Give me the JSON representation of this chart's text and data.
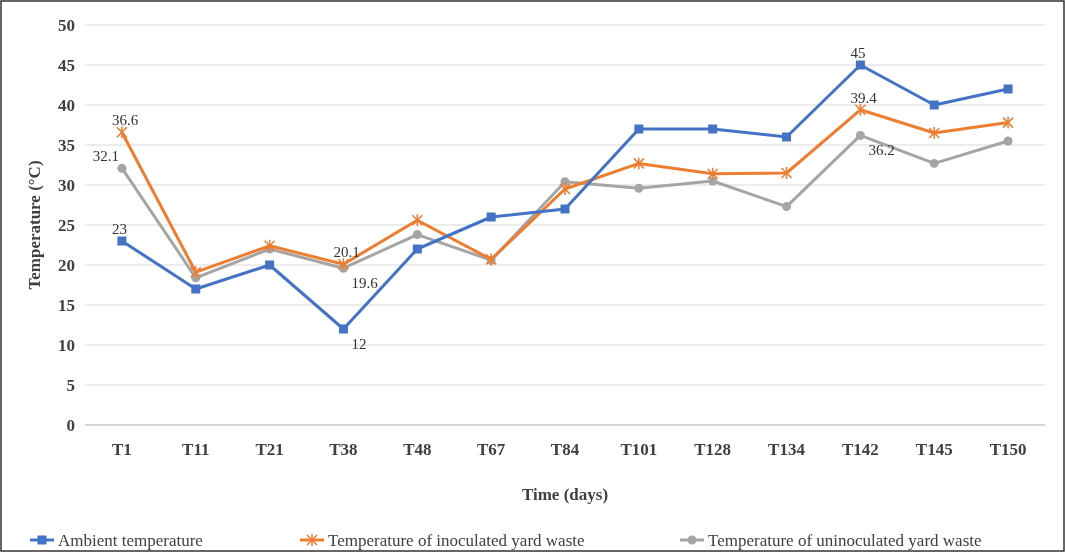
{
  "chart_data": {
    "type": "line",
    "xlabel": "Time (days)",
    "ylabel": "Temperature (°C)",
    "categories": [
      "T1",
      "T11",
      "T21",
      "T38",
      "T48",
      "T67",
      "T84",
      "T101",
      "T128",
      "T134",
      "T142",
      "T145",
      "T150"
    ],
    "ylim": [
      0,
      50
    ],
    "yticks": [
      0,
      5,
      10,
      15,
      20,
      25,
      30,
      35,
      40,
      45,
      50
    ],
    "grid": "y",
    "legend": "bottom",
    "series": [
      {
        "name": "Ambient temperature",
        "color": "#4472c4",
        "marker": "square",
        "values": [
          23,
          17,
          20,
          12,
          22,
          26,
          27,
          37,
          37,
          36,
          45,
          40,
          42
        ],
        "value_labels": [
          "23",
          null,
          null,
          "12",
          null,
          null,
          null,
          null,
          null,
          null,
          "45",
          null,
          null
        ]
      },
      {
        "name": "Temperature of inoculated yard waste",
        "color": "#ed7d31",
        "marker": "cross",
        "values": [
          36.6,
          19.1,
          22.4,
          20.1,
          25.6,
          20.7,
          29.5,
          32.7,
          31.4,
          31.5,
          39.4,
          36.5,
          37.8
        ],
        "value_labels": [
          "36.6",
          null,
          null,
          "20.1",
          null,
          null,
          null,
          null,
          null,
          null,
          "39.4",
          null,
          null
        ]
      },
      {
        "name": "Temperature of uninoculated yard waste",
        "color": "#a5a5a5",
        "marker": "circle",
        "values": [
          32.1,
          18.4,
          22,
          19.6,
          23.8,
          20.6,
          30.4,
          29.6,
          30.5,
          27.3,
          36.2,
          32.7,
          35.5
        ],
        "value_labels": [
          "32.1",
          null,
          null,
          "19.6",
          null,
          null,
          null,
          null,
          null,
          null,
          "36.2",
          null,
          null
        ]
      }
    ]
  }
}
